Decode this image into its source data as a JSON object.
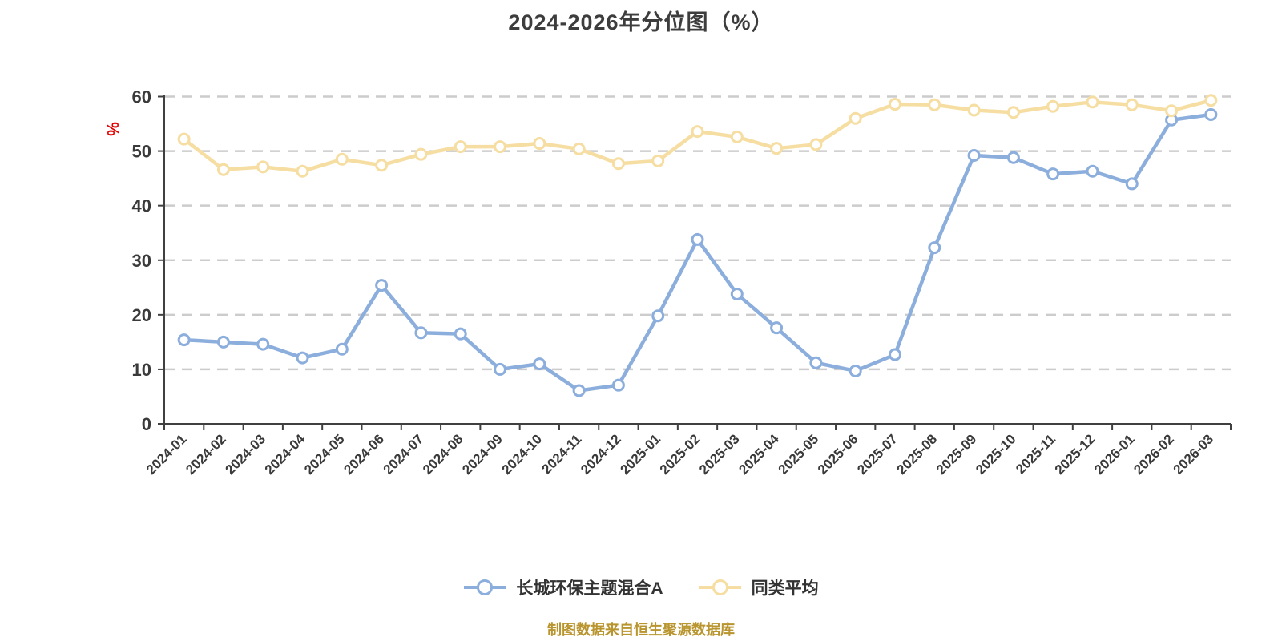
{
  "title": "2024-2026年分位图（%）",
  "footer": "制图数据来自恒生聚源数据库",
  "colors": {
    "fund_line": "#8CAEDC",
    "peer_line": "#F6DEA2",
    "marker_fill": "#FFFFFF",
    "grid": "#CCCCCC",
    "axis": "#404040",
    "tick_label": "#3A3A3A",
    "title": "#3D3D3D",
    "unit_label": "#E00000",
    "footer": "#B9952F"
  },
  "legend": [
    {
      "id": "fund",
      "label": "长城环保主题混合A",
      "color": "#8CAEDC"
    },
    {
      "id": "peer",
      "label": "同类平均",
      "color": "#F6DEA2"
    }
  ],
  "chart_data": {
    "type": "line",
    "title": "2024-2026年分位图（%）",
    "ylabel": "%",
    "xlabel": "",
    "ylim": [
      0,
      60
    ],
    "y_ticks": [
      0,
      10,
      20,
      30,
      40,
      50,
      60
    ],
    "grid": "horizontal-dashed",
    "legend_position": "bottom",
    "x_label_rotation": 45,
    "categories": [
      "2024-01",
      "2024-02",
      "2024-03",
      "2024-04",
      "2024-05",
      "2024-06",
      "2024-07",
      "2024-08",
      "2024-09",
      "2024-10",
      "2024-11",
      "2024-12",
      "2025-01",
      "2025-02",
      "2025-03",
      "2025-04",
      "2025-05",
      "2025-06",
      "2025-07",
      "2025-08",
      "2025-09",
      "2025-10",
      "2025-11",
      "2025-12",
      "2026-01",
      "2026-02",
      "2026-03"
    ],
    "series": [
      {
        "name": "长城环保主题混合A",
        "color": "#8CAEDC",
        "values": [
          15.4,
          15.0,
          14.6,
          12.1,
          13.7,
          25.4,
          16.7,
          16.5,
          10.0,
          11.0,
          6.1,
          7.1,
          19.8,
          33.8,
          23.8,
          17.6,
          11.2,
          9.7,
          12.7,
          32.3,
          49.2,
          48.8,
          45.8,
          46.3,
          44.0,
          55.7,
          56.7
        ]
      },
      {
        "name": "同类平均",
        "color": "#F6DEA2",
        "values": [
          52.2,
          46.6,
          47.1,
          46.3,
          48.5,
          47.4,
          49.4,
          50.8,
          50.8,
          51.4,
          50.4,
          47.7,
          48.2,
          53.6,
          52.6,
          50.5,
          51.2,
          56.0,
          58.6,
          58.5,
          57.5,
          57.1,
          58.2,
          59.0,
          58.5,
          57.4,
          59.3
        ]
      }
    ]
  }
}
